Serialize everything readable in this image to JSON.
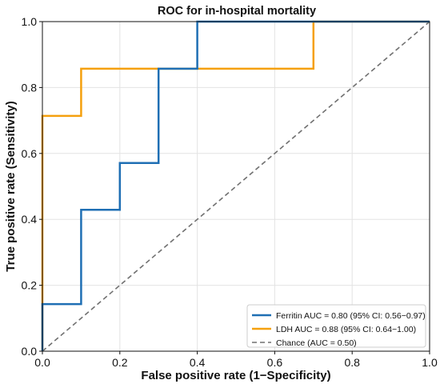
{
  "chart_data": {
    "type": "line",
    "title": "ROC for in-hospital mortality",
    "xlabel": "False positive rate (1−Specificity)",
    "ylabel": "True positive rate (Sensitivity)",
    "xlim": [
      0,
      1
    ],
    "ylim": [
      0,
      1
    ],
    "xticks": [
      "0.0",
      "0.2",
      "0.4",
      "0.6",
      "0.8",
      "1.0"
    ],
    "yticks": [
      "0.0",
      "0.2",
      "0.4",
      "0.6",
      "0.8",
      "1.0"
    ],
    "grid": true,
    "legend_position": "bottom-right",
    "series": [
      {
        "name": "Ferritin AUC = 0.80 (95% CI: 0.56−0.97)",
        "color": "#1f6fb4",
        "style": "solid",
        "x": [
          0.0,
          0.0,
          0.1,
          0.1,
          0.2,
          0.2,
          0.3,
          0.3,
          0.4,
          0.4,
          1.0
        ],
        "y": [
          0.0,
          0.143,
          0.143,
          0.429,
          0.429,
          0.571,
          0.571,
          0.857,
          0.857,
          1.0,
          1.0
        ]
      },
      {
        "name": "LDH AUC = 0.88 (95% CI: 0.64−1.00)",
        "color": "#f5a00e",
        "style": "solid",
        "x": [
          0.0,
          0.0,
          0.1,
          0.1,
          0.7,
          0.7,
          1.0
        ],
        "y": [
          0.0,
          0.714,
          0.714,
          0.857,
          0.857,
          1.0,
          1.0
        ]
      },
      {
        "name": "Chance (AUC = 0.50)",
        "color": "#707070",
        "style": "dashed",
        "x": [
          0,
          1
        ],
        "y": [
          0,
          1
        ]
      }
    ]
  }
}
